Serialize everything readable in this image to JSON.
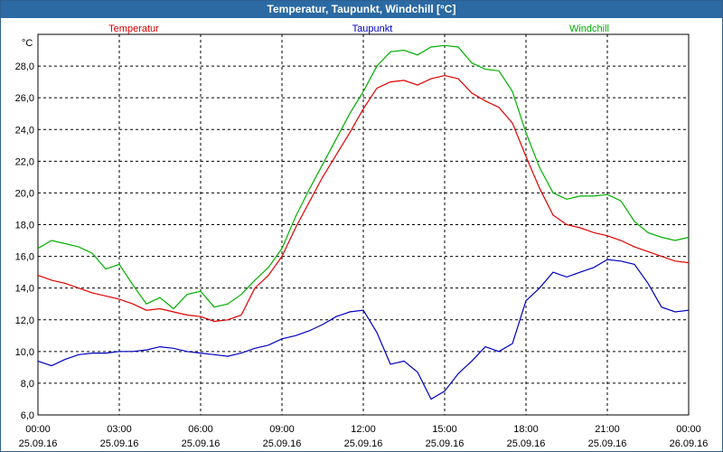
{
  "window": {
    "title": "Temperatur, Taupunkt, Windchill [°C]"
  },
  "chart_data": {
    "type": "line",
    "ylabel": "°C",
    "ylim": [
      6,
      30
    ],
    "xlim_hours": [
      0,
      24
    ],
    "yticks": [
      "6,0",
      "8,0",
      "10,0",
      "12,0",
      "14,0",
      "16,0",
      "18,0",
      "20,0",
      "22,0",
      "24,0",
      "26,0",
      "28,0"
    ],
    "xticks": [
      {
        "time": "00:00",
        "date": "25.09.16"
      },
      {
        "time": "03:00",
        "date": "25.09.16"
      },
      {
        "time": "06:00",
        "date": "25.09.16"
      },
      {
        "time": "09:00",
        "date": "25.09.16"
      },
      {
        "time": "12:00",
        "date": "25.09.16"
      },
      {
        "time": "15:00",
        "date": "25.09.16"
      },
      {
        "time": "18:00",
        "date": "25.09.16"
      },
      {
        "time": "21:00",
        "date": "25.09.16"
      },
      {
        "time": "00:00",
        "date": "26.09.16"
      }
    ],
    "grid": true,
    "legend_placement": "top",
    "series": [
      {
        "name": "Temperatur",
        "color": "#e00000",
        "x": [
          0,
          0.5,
          1,
          1.5,
          2,
          2.5,
          3,
          3.5,
          4,
          4.5,
          5,
          5.5,
          6,
          6.5,
          7,
          7.5,
          8,
          8.5,
          9,
          9.5,
          10,
          10.5,
          11,
          11.5,
          12,
          12.5,
          13,
          13.5,
          14,
          14.5,
          15,
          15.5,
          16,
          16.5,
          17,
          17.5,
          18,
          18.5,
          19,
          19.5,
          20,
          20.5,
          21,
          21.5,
          22,
          22.5,
          23,
          23.5,
          24
        ],
        "values": [
          14.8,
          14.5,
          14.3,
          14.0,
          13.7,
          13.5,
          13.3,
          13.0,
          12.6,
          12.7,
          12.5,
          12.3,
          12.2,
          11.9,
          12.0,
          12.3,
          14.0,
          14.8,
          16.0,
          17.8,
          19.4,
          21.0,
          22.4,
          23.8,
          25.3,
          26.6,
          27.0,
          27.1,
          26.8,
          27.2,
          27.4,
          27.2,
          26.3,
          25.8,
          25.4,
          24.4,
          22.3,
          20.3,
          18.6,
          18.0,
          17.8,
          17.5,
          17.3,
          17.0,
          16.6,
          16.3,
          16.0,
          15.7,
          15.6
        ]
      },
      {
        "name": "Taupunkt",
        "color": "#0000c0",
        "x": [
          0,
          0.5,
          1,
          1.5,
          2,
          2.5,
          3,
          3.5,
          4,
          4.5,
          5,
          5.5,
          6,
          6.5,
          7,
          7.5,
          8,
          8.5,
          9,
          9.5,
          10,
          10.5,
          11,
          11.5,
          12,
          12.5,
          13,
          13.5,
          14,
          14.5,
          15,
          15.5,
          16,
          16.5,
          17,
          17.5,
          18,
          18.5,
          19,
          19.5,
          20,
          20.5,
          21,
          21.5,
          22,
          22.5,
          23,
          23.5,
          24
        ],
        "values": [
          9.4,
          9.1,
          9.5,
          9.8,
          9.9,
          9.9,
          10.0,
          10.0,
          10.1,
          10.3,
          10.2,
          10.0,
          9.9,
          9.8,
          9.7,
          9.9,
          10.2,
          10.4,
          10.8,
          11.0,
          11.3,
          11.7,
          12.2,
          12.5,
          12.6,
          11.2,
          9.2,
          9.4,
          8.7,
          7.0,
          7.5,
          8.6,
          9.4,
          10.3,
          10.0,
          10.5,
          13.2,
          14.0,
          15.0,
          14.7,
          15.0,
          15.3,
          15.8,
          15.7,
          15.5,
          14.3,
          12.8,
          12.5,
          12.6
        ]
      },
      {
        "name": "Windchill",
        "color": "#00b000",
        "x": [
          0,
          0.5,
          1,
          1.5,
          2,
          2.5,
          3,
          3.5,
          4,
          4.5,
          5,
          5.5,
          6,
          6.5,
          7,
          7.5,
          8,
          8.5,
          9,
          9.5,
          10,
          10.5,
          11,
          11.5,
          12,
          12.5,
          13,
          13.5,
          14,
          14.5,
          15,
          15.5,
          16,
          16.5,
          17,
          17.5,
          18,
          18.5,
          19,
          19.5,
          20,
          20.5,
          21,
          21.5,
          22,
          22.5,
          23,
          23.5,
          24
        ],
        "values": [
          16.5,
          17.0,
          16.8,
          16.6,
          16.2,
          15.2,
          15.5,
          14.2,
          13.0,
          13.4,
          12.7,
          13.6,
          13.8,
          12.8,
          13.0,
          13.6,
          14.5,
          15.3,
          16.5,
          18.5,
          20.2,
          21.8,
          23.4,
          25.0,
          26.4,
          28.0,
          28.9,
          29.0,
          28.7,
          29.2,
          29.3,
          29.2,
          28.2,
          27.8,
          27.7,
          26.4,
          23.8,
          21.6,
          20.0,
          19.6,
          19.8,
          19.8,
          19.9,
          19.5,
          18.2,
          17.5,
          17.2,
          17.0,
          17.2
        ]
      }
    ]
  }
}
